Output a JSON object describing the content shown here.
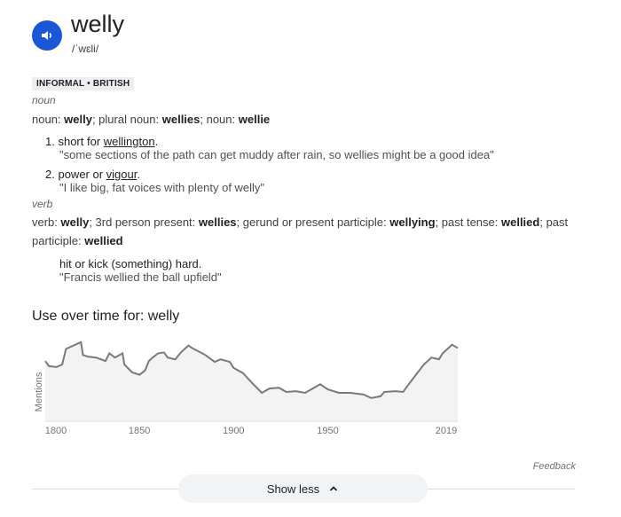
{
  "entry": {
    "word": "welly",
    "pronunciation": "/ˈwɛli/",
    "register": "INFORMAL • BRITISH",
    "speaker_icon": "volume-icon",
    "accent": "#1a56d6"
  },
  "noun": {
    "pos": "noun",
    "forms": [
      {
        "t": "noun: "
      },
      {
        "t": "welly",
        "b": true
      },
      {
        "t": "; plural noun: "
      },
      {
        "t": "wellies",
        "b": true
      },
      {
        "t": "; noun: "
      },
      {
        "t": "wellie",
        "b": true
      }
    ],
    "senses": [
      {
        "num": "1.",
        "pre": "short for ",
        "link": "wellington",
        "post": ".",
        "example": "\"some sections of the path can get muddy after rain, so wellies might be a good idea\""
      },
      {
        "num": "2.",
        "pre": "power or ",
        "link": "vigour",
        "post": ".",
        "example": "\"I like big, fat voices with plenty of welly\""
      }
    ]
  },
  "verb": {
    "pos": "verb",
    "forms1": [
      {
        "t": "verb: "
      },
      {
        "t": "welly",
        "b": true
      },
      {
        "t": "; 3rd person present: "
      },
      {
        "t": "wellies",
        "b": true
      },
      {
        "t": "; gerund or present participle: "
      },
      {
        "t": "wellying",
        "b": true
      },
      {
        "t": "; past tense: "
      },
      {
        "t": "wellied",
        "b": true
      },
      {
        "t": "; past"
      }
    ],
    "forms2": [
      {
        "t": "participle: "
      },
      {
        "t": "wellied",
        "b": true
      }
    ],
    "definition": "hit or kick (something) hard.",
    "example": "\"Francis wellied the ball upfield\""
  },
  "chart_data": {
    "type": "area",
    "title": "Use over time for: welly",
    "ylabel": "Mentions",
    "xlabel": "",
    "xlim": [
      1800,
      2019
    ],
    "ylim": [
      0,
      100
    ],
    "xticks": [
      "1800",
      "1850",
      "1900",
      "1950",
      "2019"
    ],
    "grid": false,
    "x": [
      1800,
      1802,
      1806,
      1809,
      1811,
      1814,
      1817,
      1819,
      1820,
      1823,
      1827,
      1832,
      1834,
      1837,
      1841,
      1842,
      1846,
      1850,
      1853,
      1855,
      1857,
      1860,
      1863,
      1865,
      1869,
      1872,
      1876,
      1878,
      1885,
      1890,
      1893,
      1898,
      1900,
      1905,
      1910,
      1915,
      1919,
      1924,
      1928,
      1933,
      1938,
      1942,
      1946,
      1950,
      1956,
      1962,
      1969,
      1973,
      1978,
      1980,
      1986,
      1990,
      1994,
      2001,
      2005,
      2009,
      2011,
      2016,
      2019
    ],
    "y": [
      70,
      64,
      63,
      66,
      84,
      87,
      90,
      92,
      77,
      75,
      74,
      70,
      79,
      74,
      79,
      66,
      57,
      54,
      59,
      70,
      74,
      79,
      80,
      74,
      72,
      80,
      88,
      85,
      77,
      69,
      72,
      69,
      62,
      56,
      44,
      33,
      38,
      39,
      34,
      35,
      33,
      38,
      43,
      37,
      33,
      33,
      31,
      27,
      29,
      34,
      35,
      34,
      46,
      66,
      74,
      72,
      79,
      89,
      85
    ],
    "line_color": "#7a7a7a",
    "fill_color": "#f3f3f3"
  },
  "footer": {
    "feedback": "Feedback",
    "show_less": "Show less"
  }
}
